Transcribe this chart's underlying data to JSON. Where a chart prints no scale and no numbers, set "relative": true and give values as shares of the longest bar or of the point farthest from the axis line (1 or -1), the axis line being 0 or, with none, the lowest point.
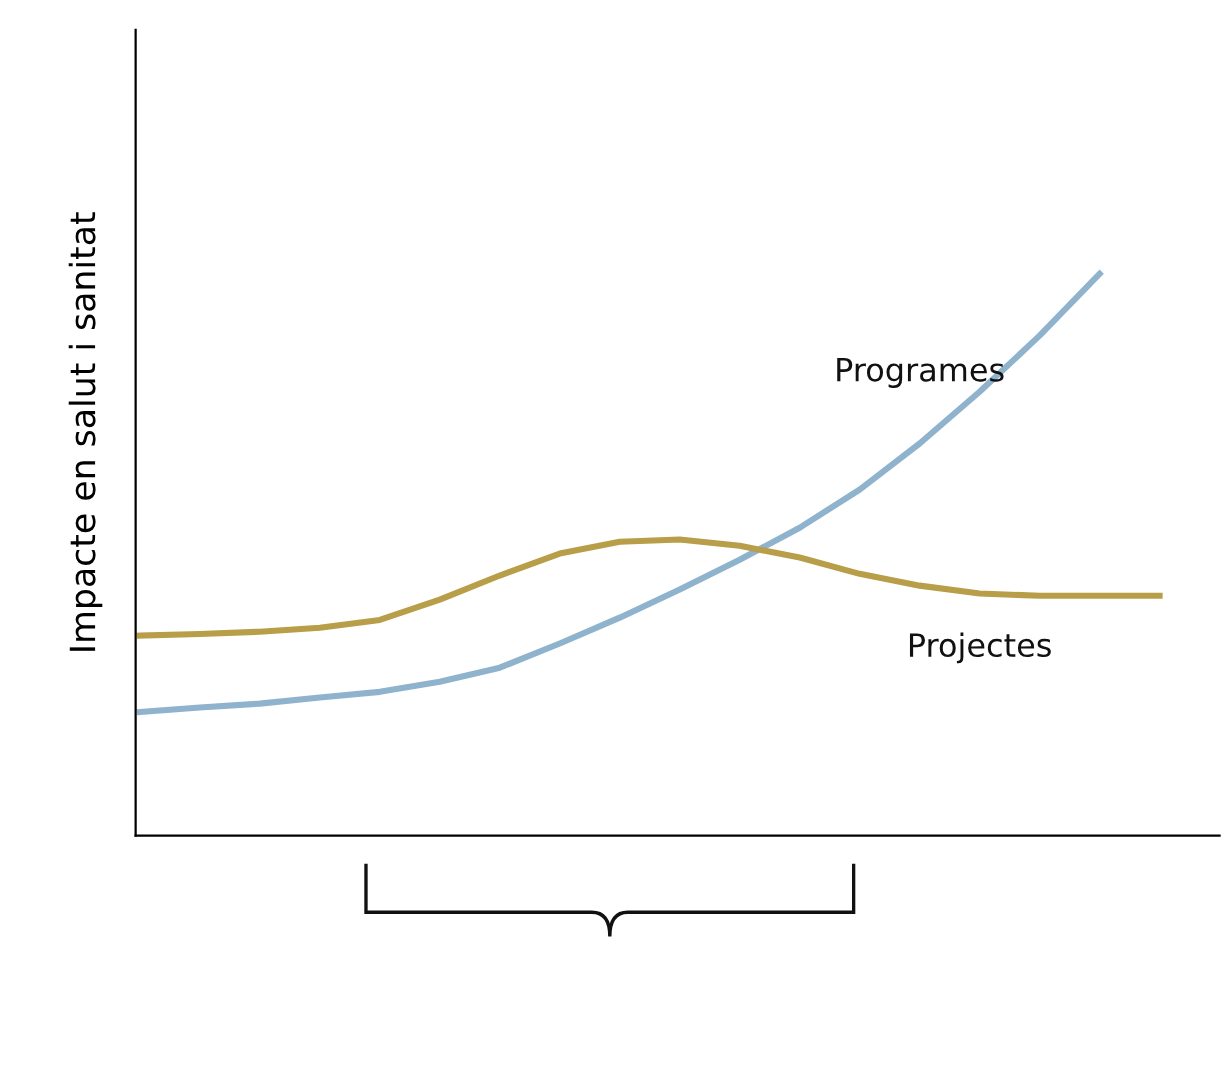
{
  "chart_data": {
    "type": "line",
    "ylabel": "Impacte en salut i sanitat",
    "relative": true,
    "grid": false,
    "legend": false,
    "marker": "none",
    "line_style": "solid",
    "categories": [
      null,
      null,
      null,
      null,
      null,
      null,
      null,
      null,
      null,
      null,
      null,
      null,
      null,
      null,
      null,
      null,
      null,
      null
    ],
    "series": [
      {
        "name": "Programes",
        "color": "#8fb3cc",
        "values": [
          0.22,
          0.228,
          0.235,
          0.246,
          0.256,
          0.274,
          0.299,
          0.342,
          0.388,
          0.438,
          0.491,
          0.548,
          0.616,
          0.698,
          0.79,
          0.89,
          1.0,
          null
        ]
      },
      {
        "name": "Projectes",
        "color": "#b89e48",
        "values": [
          0.356,
          0.359,
          0.363,
          0.37,
          0.384,
          0.42,
          0.463,
          0.502,
          0.523,
          0.527,
          0.516,
          0.495,
          0.466,
          0.445,
          0.431,
          0.427,
          0.427,
          0.427
        ]
      }
    ]
  }
}
